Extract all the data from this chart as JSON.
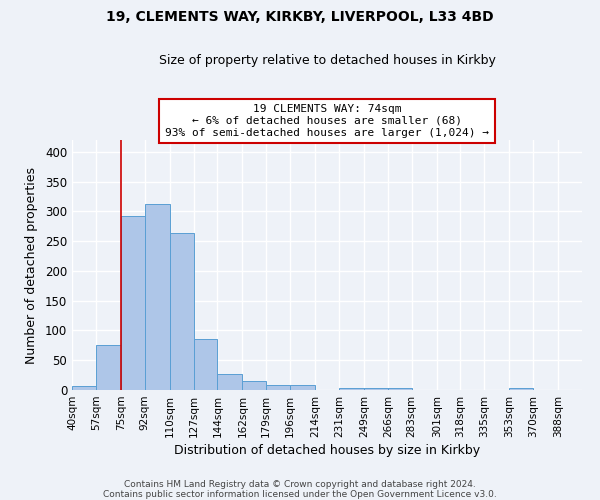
{
  "title1": "19, CLEMENTS WAY, KIRKBY, LIVERPOOL, L33 4BD",
  "title2": "Size of property relative to detached houses in Kirkby",
  "xlabel": "Distribution of detached houses by size in Kirkby",
  "ylabel": "Number of detached properties",
  "bin_labels": [
    "40sqm",
    "57sqm",
    "75sqm",
    "92sqm",
    "110sqm",
    "127sqm",
    "144sqm",
    "162sqm",
    "179sqm",
    "196sqm",
    "214sqm",
    "231sqm",
    "249sqm",
    "266sqm",
    "283sqm",
    "301sqm",
    "318sqm",
    "335sqm",
    "353sqm",
    "370sqm",
    "388sqm"
  ],
  "bar_values": [
    7,
    75,
    292,
    313,
    263,
    85,
    27,
    15,
    8,
    8,
    0,
    4,
    4,
    3,
    0,
    0,
    0,
    0,
    3,
    0,
    0
  ],
  "bin_edges": [
    40,
    57,
    75,
    92,
    110,
    127,
    144,
    162,
    179,
    196,
    214,
    231,
    249,
    266,
    283,
    301,
    318,
    335,
    353,
    370,
    388,
    405
  ],
  "bar_color": "#aec6e8",
  "bar_edge_color": "#5a9fd4",
  "property_line_x": 75,
  "ylim": [
    0,
    420
  ],
  "yticks": [
    0,
    50,
    100,
    150,
    200,
    250,
    300,
    350,
    400
  ],
  "annotation_line1": "19 CLEMENTS WAY: 74sqm",
  "annotation_line2": "← 6% of detached houses are smaller (68)",
  "annotation_line3": "93% of semi-detached houses are larger (1,024) →",
  "annotation_box_color": "#ffffff",
  "annotation_box_edge_color": "#cc0000",
  "red_line_color": "#cc0000",
  "footer1": "Contains HM Land Registry data © Crown copyright and database right 2024.",
  "footer2": "Contains public sector information licensed under the Open Government Licence v3.0.",
  "background_color": "#eef2f8",
  "grid_color": "#ffffff"
}
